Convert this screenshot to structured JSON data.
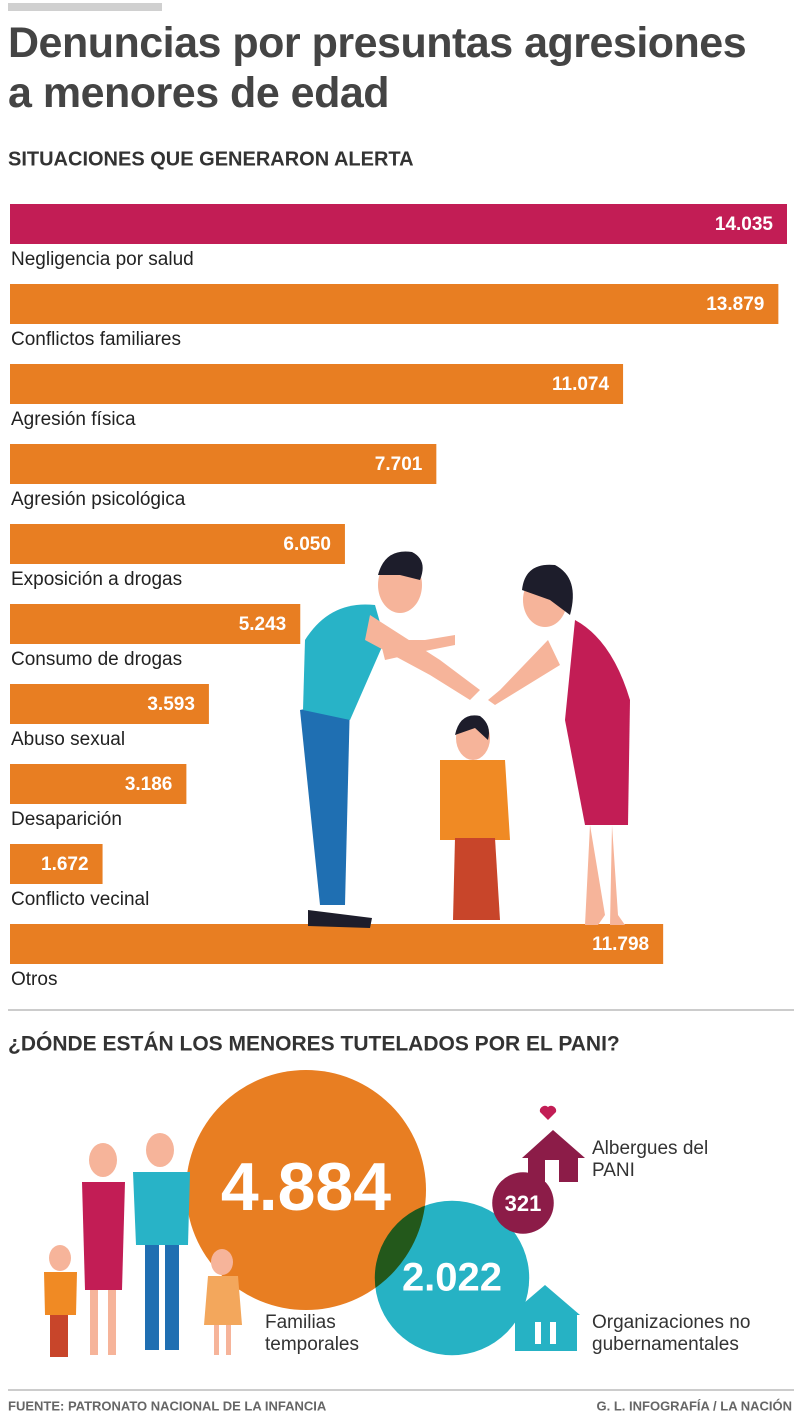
{
  "header": {
    "title": "Denuncias por presuntas agresiones a menores de edad"
  },
  "chart_data": [
    {
      "type": "bar",
      "orientation": "horizontal",
      "title": "SITUACIONES QUE GENERARON ALERTA",
      "categories": [
        "Negligencia por salud",
        "Conflictos familiares",
        "Agresión física",
        "Agresión psicológica",
        "Exposición a drogas",
        "Consumo de drogas",
        "Abuso sexual",
        "Desaparición",
        "Conflicto vecinal",
        "Otros"
      ],
      "values": [
        14035,
        13879,
        11074,
        7701,
        6050,
        5243,
        3593,
        3186,
        1672,
        11798
      ],
      "value_labels": [
        "14.035",
        "13.879",
        "11.074",
        "7.701",
        "6.050",
        "5.243",
        "3.593",
        "3.186",
        "1.672",
        "11.798"
      ],
      "colors": [
        "#c21d55",
        "#e87e22",
        "#e87e22",
        "#e87e22",
        "#e87e22",
        "#e87e22",
        "#e87e22",
        "#e87e22",
        "#e87e22",
        "#e87e22"
      ]
    },
    {
      "type": "bubble",
      "title": "¿DÓNDE ESTÁN LOS MENORES TUTELADOS POR EL PANI?",
      "categories": [
        "Familias temporales",
        "Organizaciones no gubernamentales",
        "Albergues del PANI"
      ],
      "values": [
        4884,
        2022,
        321
      ],
      "value_labels": [
        "4.884",
        "2.022",
        "321"
      ],
      "colors": [
        "#e87e22",
        "#26b2c4",
        "#8c1c48"
      ]
    }
  ],
  "footer": {
    "source": "FUENTE: PATRONATO NACIONAL DE LA INFANCIA",
    "credit": "G. L. INFOGRAFÍA / LA NACIÓN"
  }
}
